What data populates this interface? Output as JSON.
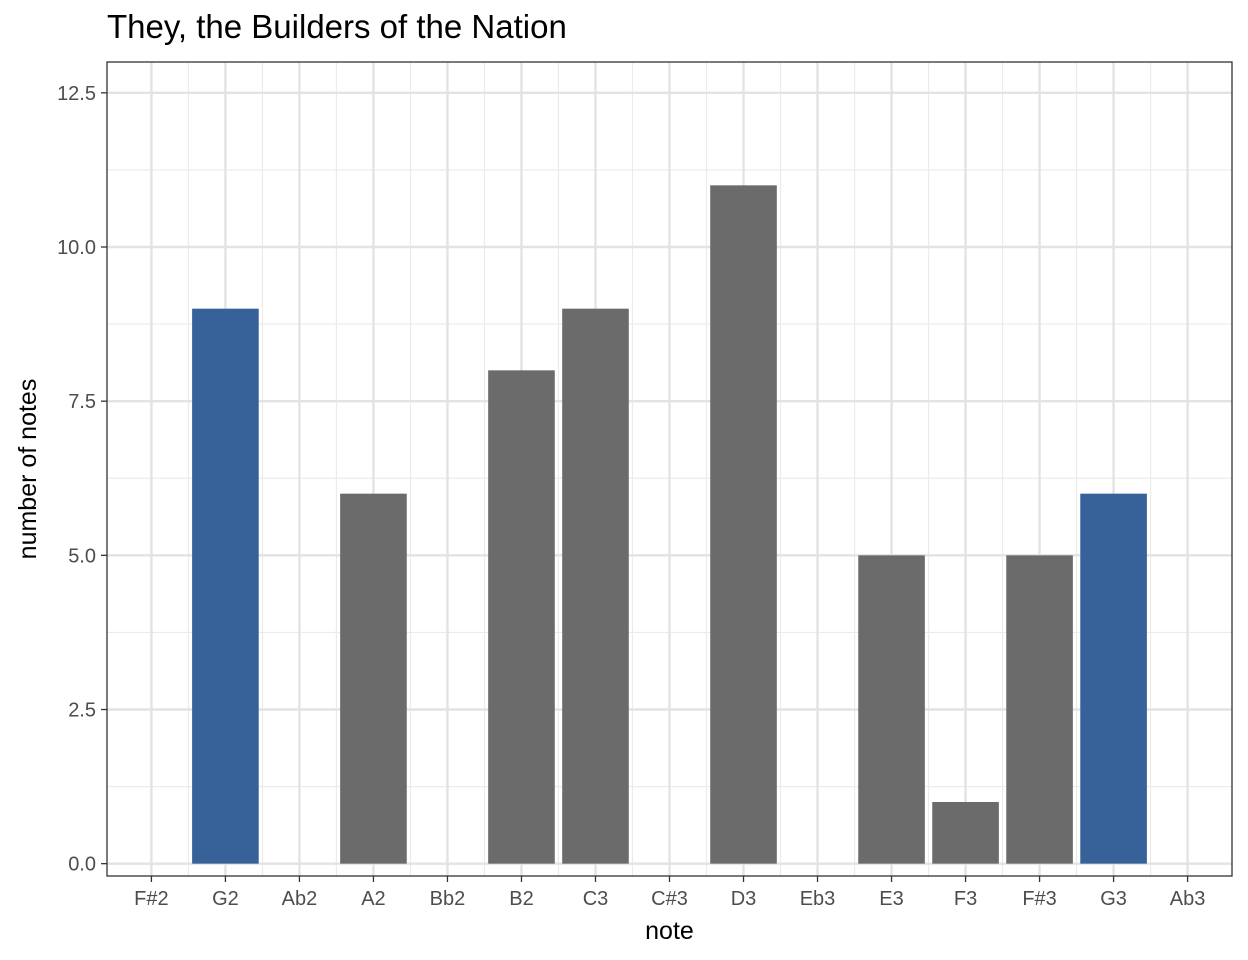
{
  "chart_data": {
    "type": "bar",
    "title": "They, the Builders of the Nation",
    "xlabel": "note",
    "ylabel": "number of notes",
    "categories": [
      "F#2",
      "G2",
      "Ab2",
      "A2",
      "Bb2",
      "B2",
      "C3",
      "C#3",
      "D3",
      "Eb3",
      "E3",
      "F3",
      "F#3",
      "G3",
      "Ab3"
    ],
    "values": [
      0,
      9,
      0,
      6,
      0,
      8,
      9,
      0,
      11,
      0,
      5,
      1,
      5,
      6,
      0
    ],
    "highlight": [
      false,
      true,
      false,
      false,
      false,
      false,
      false,
      false,
      false,
      false,
      false,
      false,
      false,
      true,
      false
    ],
    "colors": {
      "default": "#6b6b6b",
      "highlight": "#376299"
    },
    "ylim": [
      0,
      12.5
    ],
    "yticks": [
      0,
      2.5,
      5,
      7.5,
      10,
      12.5
    ],
    "ytick_labels": [
      "0.0",
      "2.5",
      "5.0",
      "7.5",
      "10.0",
      "12.5"
    ],
    "grid": true,
    "legend": "none"
  }
}
